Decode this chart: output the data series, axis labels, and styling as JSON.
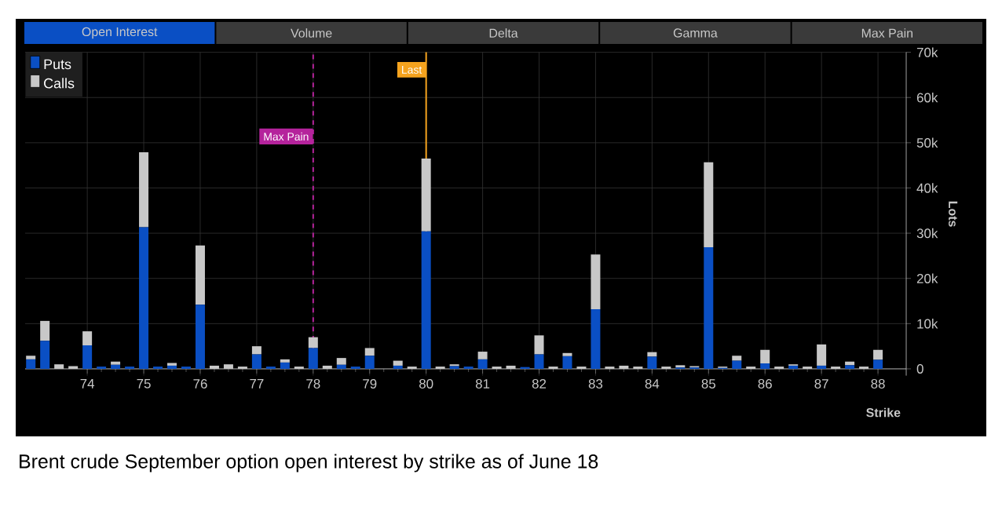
{
  "chart_data": {
    "type": "bar",
    "stacked": true,
    "title": "Brent crude September option open interest by strike as of June 18",
    "annotations": [
      "Open Interest",
      "Volume",
      "Delta",
      "Gamma",
      "Max Pain"
    ],
    "xlabel": "Strike",
    "ylabel": "Lots",
    "x": [
      73,
      73.25,
      73.5,
      73.75,
      74,
      74.25,
      74.5,
      74.75,
      75,
      75.25,
      75.5,
      75.75,
      76,
      76.25,
      76.5,
      76.75,
      77,
      77.25,
      77.5,
      77.75,
      78,
      78.25,
      78.5,
      78.75,
      79,
      79.25,
      79.5,
      79.75,
      80,
      80.25,
      80.5,
      80.75,
      81,
      81.25,
      81.5,
      81.75,
      82,
      82.25,
      82.5,
      82.75,
      83,
      83.25,
      83.5,
      83.75,
      84,
      84.25,
      84.5,
      84.75,
      85,
      85.25,
      85.5,
      85.75,
      86,
      86.25,
      86.5,
      86.75,
      87,
      87.25,
      87.5,
      87.75,
      88
    ],
    "series": [
      {
        "name": "Puts",
        "color": "#0a4fc4",
        "values": [
          2100,
          6200,
          0,
          0,
          5200,
          500,
          900,
          500,
          31300,
          500,
          700,
          500,
          14200,
          0,
          0,
          0,
          3200,
          500,
          1400,
          0,
          4600,
          0,
          900,
          500,
          2900,
          0,
          700,
          0,
          30400,
          0,
          600,
          500,
          2100,
          0,
          0,
          400,
          3200,
          0,
          2800,
          0,
          13200,
          0,
          0,
          0,
          2700,
          0,
          300,
          300,
          26900,
          200,
          1800,
          0,
          1200,
          0,
          700,
          0,
          700,
          0,
          800,
          0,
          2000
        ]
      },
      {
        "name": "Calls",
        "color": "#c8c8c8",
        "values": [
          800,
          4400,
          1000,
          600,
          3100,
          0,
          700,
          0,
          16600,
          0,
          600,
          0,
          13100,
          700,
          1000,
          500,
          1800,
          0,
          700,
          500,
          2400,
          700,
          1500,
          0,
          1700,
          0,
          1100,
          500,
          16100,
          500,
          400,
          0,
          1700,
          500,
          700,
          0,
          4200,
          500,
          700,
          500,
          12100,
          500,
          700,
          500,
          1000,
          500,
          500,
          300,
          18800,
          300,
          1100,
          500,
          3000,
          500,
          300,
          500,
          4700,
          500,
          800,
          500,
          2200
        ]
      }
    ],
    "xlim": [
      72.9,
      88.5
    ],
    "xticks": [
      74,
      75,
      76,
      77,
      78,
      79,
      80,
      81,
      82,
      83,
      84,
      85,
      86,
      87,
      88
    ],
    "ylim": [
      -1500,
      70000
    ],
    "yticks": [
      {
        "value": 0,
        "label": "0"
      },
      {
        "value": 10000,
        "label": "10k"
      },
      {
        "value": 20000,
        "label": "20k"
      },
      {
        "value": 30000,
        "label": "30k"
      },
      {
        "value": 40000,
        "label": "40k"
      },
      {
        "value": 50000,
        "label": "50k"
      },
      {
        "value": 60000,
        "label": "60k"
      },
      {
        "value": 70000,
        "label": "70k"
      }
    ],
    "ref_lines": [
      {
        "axis": "x",
        "value": 78,
        "label": "Max Pain",
        "color": "#b5239c",
        "line_style": "dashed"
      },
      {
        "axis": "x",
        "value": 80,
        "label": "Last",
        "color": "#f5a31e",
        "line_style": "solid"
      }
    ],
    "grid": true,
    "legend": "top left"
  }
}
